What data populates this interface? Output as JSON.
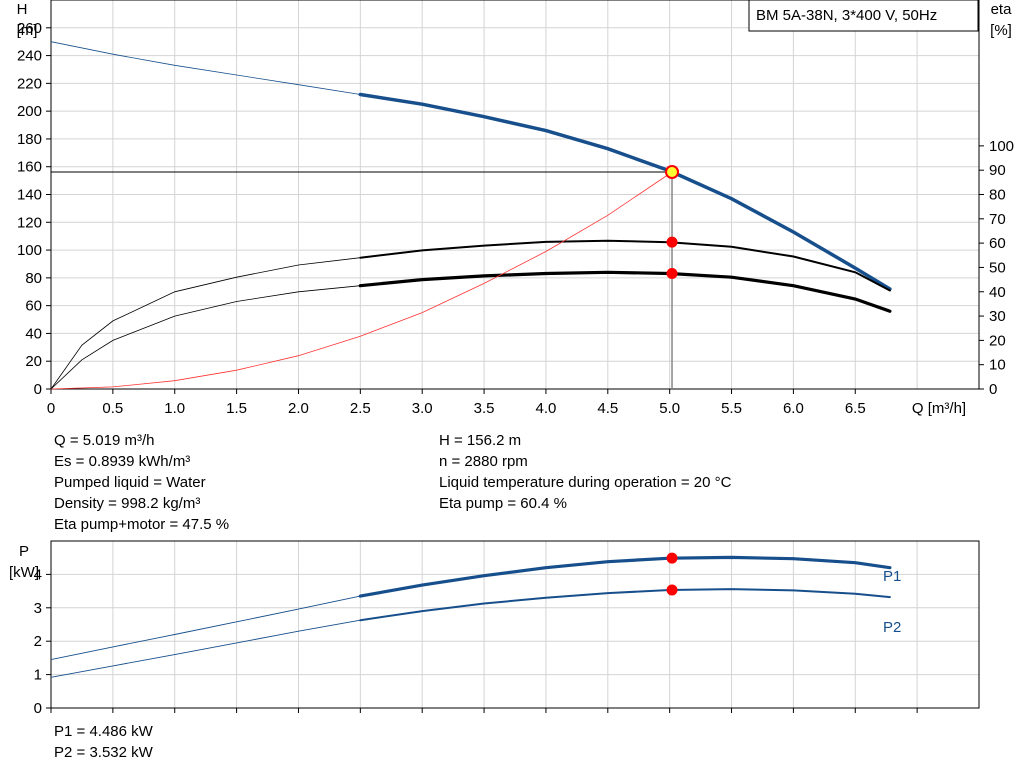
{
  "chart_data": [
    {
      "type": "line",
      "title": "BM 5A-38N, 3*400 V, 50Hz",
      "xlabel": "Q [m³/h]",
      "ylabel_left": [
        "H",
        "[m]"
      ],
      "ylabel_right": [
        "eta",
        "[%]"
      ],
      "xlim": [
        0,
        7.5
      ],
      "ylim_left": [
        0,
        280
      ],
      "ylim_right": [
        0,
        160
      ],
      "grid": true,
      "x_ticks": [
        "0",
        "0.5",
        "1.0",
        "1.5",
        "2.0",
        "2.5",
        "3.0",
        "3.5",
        "4.0",
        "4.5",
        "5.0",
        "5.5",
        "6.0",
        "6.5"
      ],
      "y_ticks_left": [
        0,
        20,
        40,
        60,
        80,
        100,
        120,
        140,
        160,
        180,
        200,
        220,
        240,
        260
      ],
      "y_ticks_right": [
        0,
        10,
        20,
        30,
        40,
        50,
        60,
        70,
        80,
        90,
        100
      ],
      "series": [
        {
          "name": "H",
          "axis": "left",
          "color": "#174f8c",
          "highlight_from": 2.5,
          "x": [
            0,
            0.5,
            1.0,
            1.5,
            2.0,
            2.5,
            3.0,
            3.5,
            4.0,
            4.5,
            5.0,
            5.5,
            6.0,
            6.5,
            6.78
          ],
          "y": [
            250,
            241,
            233,
            226,
            219,
            212,
            205,
            196,
            186,
            173,
            157,
            137,
            113,
            87,
            72
          ]
        },
        {
          "name": "eta pump",
          "axis": "right",
          "color": "#000000",
          "highlight_from": 2.5,
          "x": [
            0,
            0.25,
            0.5,
            1.0,
            1.5,
            2.0,
            2.5,
            3.0,
            3.5,
            4.0,
            4.5,
            5.0,
            5.5,
            6.0,
            6.5,
            6.78
          ],
          "y": [
            0,
            18,
            28,
            40,
            46,
            51,
            54,
            57,
            59,
            60.5,
            61,
            60.4,
            58.5,
            54.5,
            48,
            40.5
          ]
        },
        {
          "name": "eta pump+motor",
          "axis": "right",
          "color": "#000000",
          "highlight_from": 2.5,
          "x": [
            0,
            0.25,
            0.5,
            1.0,
            1.5,
            2.0,
            2.5,
            3.0,
            3.5,
            4.0,
            4.5,
            5.0,
            5.5,
            6.0,
            6.5,
            6.78
          ],
          "y": [
            0,
            12,
            20,
            30,
            36,
            40,
            42.5,
            45,
            46.5,
            47.5,
            48,
            47.5,
            46,
            42.5,
            37,
            32
          ]
        },
        {
          "name": "system curve",
          "axis": "left",
          "color": "#ff3333",
          "x": [
            0,
            0.5,
            1.0,
            1.5,
            2.0,
            2.5,
            3.0,
            3.5,
            4.0,
            4.5,
            5.02
          ],
          "y": [
            0,
            1.5,
            6,
            13.5,
            24,
            38,
            55,
            76,
            99,
            125,
            156.2
          ]
        }
      ],
      "duty_point": {
        "x": 5.019,
        "H": 156.2,
        "eta_pump": 60.4,
        "eta_total": 47.5
      },
      "info_left": [
        "Q = 5.019 m³/h",
        "Es = 0.8939 kWh/m³",
        "Pumped liquid = Water",
        "Density = 998.2 kg/m³",
        "Eta pump+motor = 47.5 %"
      ],
      "info_right": [
        "H = 156.2 m",
        "n = 2880 rpm",
        "Liquid temperature during operation = 20 °C",
        "Eta pump = 60.4 %"
      ]
    },
    {
      "type": "line",
      "ylabel": [
        "P",
        "[kW]"
      ],
      "xlim": [
        0,
        7.5
      ],
      "ylim": [
        0,
        5
      ],
      "grid": true,
      "y_ticks": [
        0,
        1,
        2,
        3,
        4
      ],
      "series": [
        {
          "name": "P1",
          "color": "#174f8c",
          "highlight_from": 2.5,
          "x": [
            0,
            0.5,
            1.0,
            1.5,
            2.0,
            2.5,
            3.0,
            3.5,
            4.0,
            4.5,
            5.0,
            5.5,
            6.0,
            6.5,
            6.78
          ],
          "y": [
            1.45,
            1.83,
            2.2,
            2.58,
            2.96,
            3.35,
            3.68,
            3.96,
            4.2,
            4.38,
            4.486,
            4.51,
            4.47,
            4.35,
            4.2
          ]
        },
        {
          "name": "P2",
          "color": "#174f8c",
          "highlight_from": 2.5,
          "x": [
            0,
            0.5,
            1.0,
            1.5,
            2.0,
            2.5,
            3.0,
            3.5,
            4.0,
            4.5,
            5.0,
            5.5,
            6.0,
            6.5,
            6.78
          ],
          "y": [
            0.92,
            1.26,
            1.6,
            1.95,
            2.3,
            2.63,
            2.9,
            3.13,
            3.3,
            3.44,
            3.532,
            3.56,
            3.52,
            3.42,
            3.32
          ]
        }
      ],
      "duty_point": {
        "x": 5.019,
        "P1": 4.486,
        "P2": 3.532
      },
      "info": [
        "P1 = 4.486 kW",
        "P2 = 3.532 kW"
      ]
    }
  ]
}
